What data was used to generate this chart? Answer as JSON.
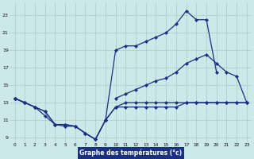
{
  "xlabel": "Graphe des températures (°c)",
  "bg_color": "#cce8e8",
  "line_color": "#1a3080",
  "grid_color": "#aacccc",
  "xlim": [
    -0.5,
    23.5
  ],
  "ylim": [
    8.5,
    24.5
  ],
  "xticks": [
    0,
    1,
    2,
    3,
    4,
    5,
    6,
    7,
    8,
    9,
    10,
    11,
    12,
    13,
    14,
    15,
    16,
    17,
    18,
    19,
    20,
    21,
    22,
    23
  ],
  "yticks": [
    9,
    11,
    13,
    15,
    17,
    19,
    21,
    23
  ],
  "line1_x": [
    0,
    1,
    2,
    3,
    4,
    5,
    6,
    7,
    8,
    9,
    10,
    11,
    12,
    13,
    14,
    15,
    16,
    17,
    18,
    19,
    20,
    21,
    22,
    23
  ],
  "line1_y": [
    13.5,
    13.0,
    12.5,
    12.0,
    10.5,
    10.5,
    10.3,
    9.5,
    8.8,
    11.0,
    19.0,
    19.5,
    19.5,
    20.0,
    20.5,
    21.0,
    22.0,
    23.5,
    22.5,
    22.5,
    16.5,
    null,
    null,
    null
  ],
  "line2_x": [
    0,
    1,
    2,
    3,
    4,
    5,
    6,
    7,
    8,
    9,
    10,
    11,
    12,
    13,
    14,
    15,
    16,
    17,
    18,
    19,
    20,
    21,
    22,
    23
  ],
  "line2_y": [
    13.5,
    13.0,
    null,
    null,
    null,
    null,
    null,
    null,
    null,
    null,
    13.5,
    14.0,
    14.5,
    15.0,
    15.5,
    15.8,
    16.5,
    17.5,
    18.0,
    18.5,
    17.5,
    16.5,
    16.0,
    13.0
  ],
  "line3_x": [
    0,
    1,
    2,
    3,
    4,
    5,
    6,
    7,
    8,
    9,
    10,
    11,
    12,
    13,
    14,
    15,
    16,
    17,
    18,
    19,
    20,
    21,
    22,
    23
  ],
  "line3_y": [
    13.5,
    13.0,
    12.5,
    12.0,
    10.5,
    10.5,
    10.3,
    9.5,
    8.8,
    11.0,
    12.5,
    13.0,
    13.0,
    13.0,
    13.0,
    13.0,
    13.0,
    13.0,
    13.0,
    13.0,
    13.0,
    13.0,
    13.0,
    13.0
  ],
  "line4_x": [
    0,
    1,
    2,
    3,
    4,
    5,
    6,
    7,
    8,
    9,
    10,
    11,
    12,
    13,
    14,
    15,
    16,
    17,
    18,
    19,
    20,
    21,
    22,
    23
  ],
  "line4_y": [
    13.5,
    13.0,
    12.5,
    11.5,
    10.5,
    10.3,
    10.3,
    9.5,
    8.8,
    11.0,
    12.5,
    12.5,
    12.5,
    12.5,
    12.5,
    12.5,
    12.5,
    13.0,
    13.0,
    13.0,
    13.0,
    13.0,
    13.0,
    13.0
  ]
}
